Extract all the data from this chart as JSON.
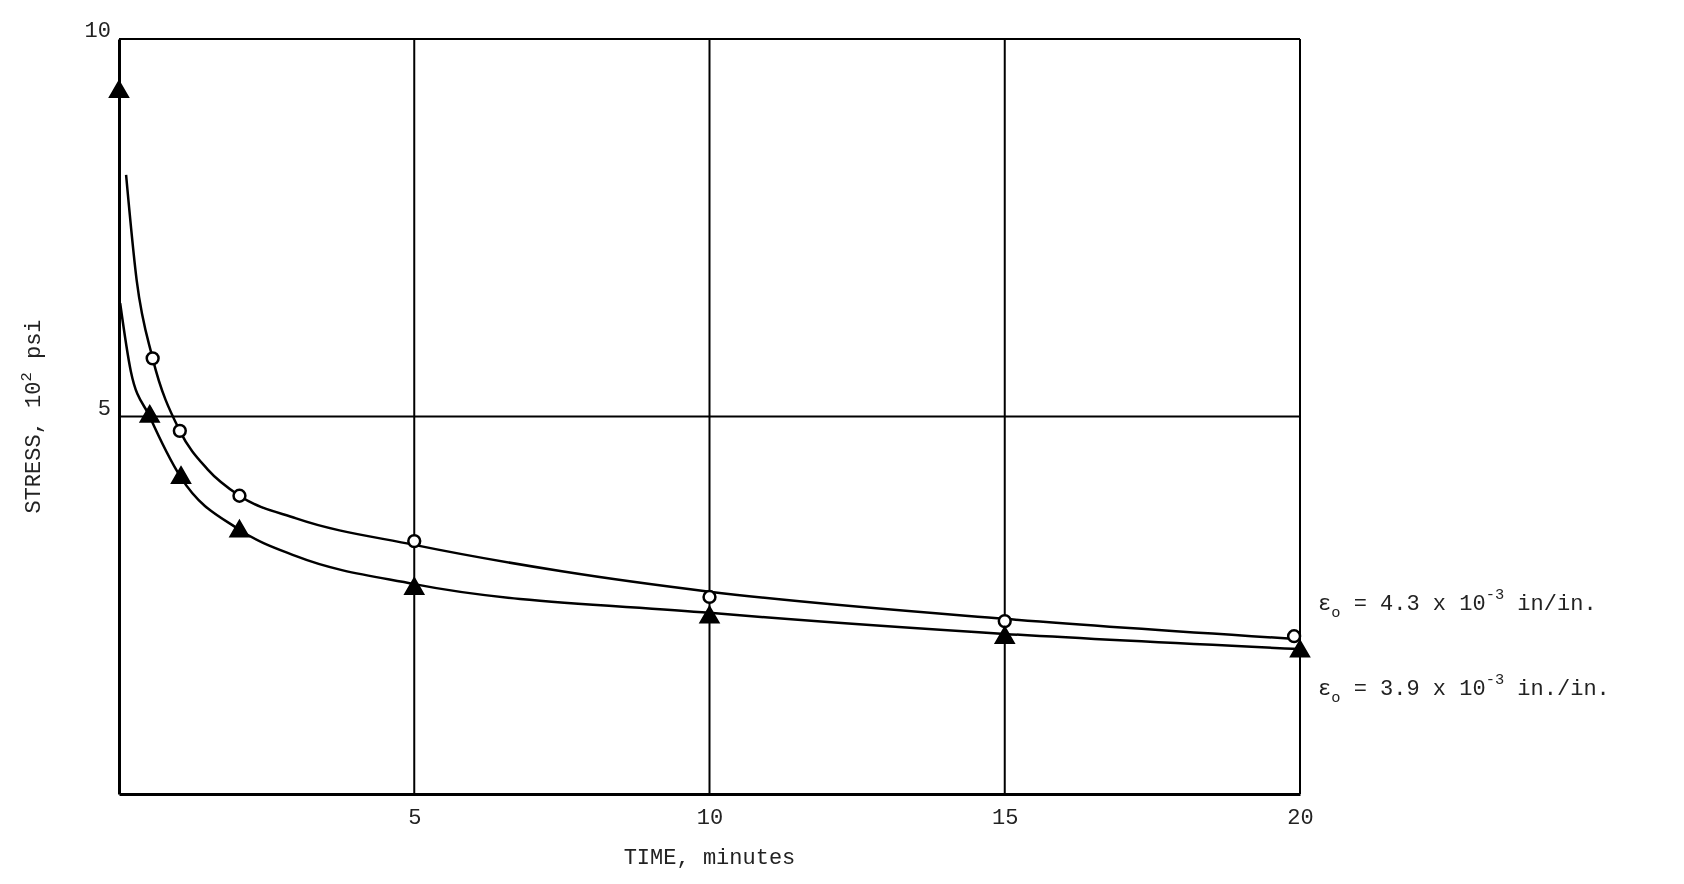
{
  "chart_data": {
    "type": "line",
    "xlabel": "TIME, minutes",
    "ylabel": "STRESS, 10$^{2}$ psi",
    "xlim": [
      0,
      20
    ],
    "ylim": [
      0,
      10
    ],
    "xticks": [
      5,
      10,
      15,
      20
    ],
    "yticks": [
      5,
      10
    ],
    "grid": true,
    "series": [
      {
        "name": "ε$_{o}$ = 4.3 x 10$^{-3}$ in/in.",
        "color": "#000000",
        "marker": "none",
        "x": [
          0.12,
          0.3,
          0.57,
          1.03,
          1.5,
          2.04,
          3,
          5,
          7.5,
          10,
          15,
          20
        ],
        "values": [
          8.2,
          6.8,
          5.77,
          4.81,
          4.3,
          3.95,
          3.65,
          3.3,
          2.95,
          2.68,
          2.32,
          2.05
        ]
      },
      {
        "name": "ε$_{o}$ = 3.9 x 10$^{-3}$ in./in.",
        "color": "#000000",
        "marker": "none",
        "x": [
          0.02,
          0.2,
          0.52,
          1.05,
          2.04,
          3,
          5,
          10,
          15,
          20
        ],
        "values": [
          6.5,
          5.6,
          5.0,
          4.19,
          3.5,
          3.15,
          2.78,
          2.4,
          2.12,
          1.92
        ]
      },
      {
        "type": "scatter",
        "color": "#000000",
        "marker": "circle",
        "x": [
          0.57,
          1.03,
          2.04,
          5,
          10,
          15,
          19.9
        ],
        "values": [
          5.77,
          4.81,
          3.95,
          3.35,
          2.61,
          2.29,
          2.09
        ]
      },
      {
        "type": "scatter",
        "color": "#000000",
        "marker": "triangle",
        "x": [
          0,
          0.52,
          1.05,
          2.04,
          5,
          10,
          15,
          20
        ],
        "values": [
          9.3,
          5.0,
          4.19,
          3.48,
          2.72,
          2.34,
          2.07,
          1.89
        ]
      }
    ]
  }
}
